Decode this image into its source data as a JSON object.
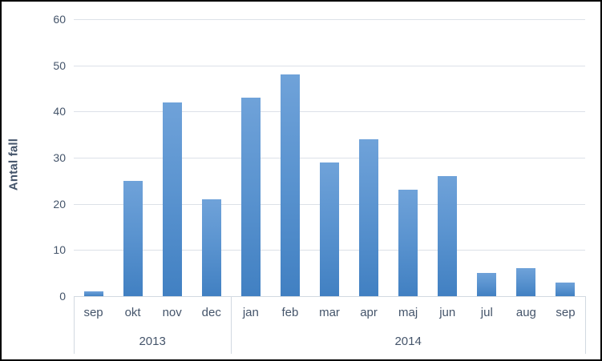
{
  "chart_data": {
    "type": "bar",
    "title": "",
    "xlabel": "",
    "ylabel": "Antal fall",
    "categories": [
      "sep",
      "okt",
      "nov",
      "dec",
      "jan",
      "feb",
      "mar",
      "apr",
      "maj",
      "jun",
      "jul",
      "aug",
      "sep"
    ],
    "values": [
      1,
      25,
      42,
      21,
      43,
      48,
      29,
      34,
      23,
      26,
      5,
      6,
      3
    ],
    "groups": [
      {
        "label": "2013",
        "span": 4
      },
      {
        "label": "2014",
        "span": 9
      }
    ],
    "ylim": [
      0,
      60
    ],
    "yticks": [
      0,
      10,
      20,
      30,
      40,
      50,
      60
    ],
    "grid": true,
    "legend": false,
    "legend_position": "none"
  },
  "colors": {
    "bar_top": "#6FA2D9",
    "bar_bottom": "#4180C2",
    "gridline": "#DCE1E8",
    "axis_line": "#D2D9E1",
    "tick_text": "#44546A",
    "axis_title_text": "#44546A",
    "background": "#FFFFFF",
    "frame_border": "#000000"
  }
}
